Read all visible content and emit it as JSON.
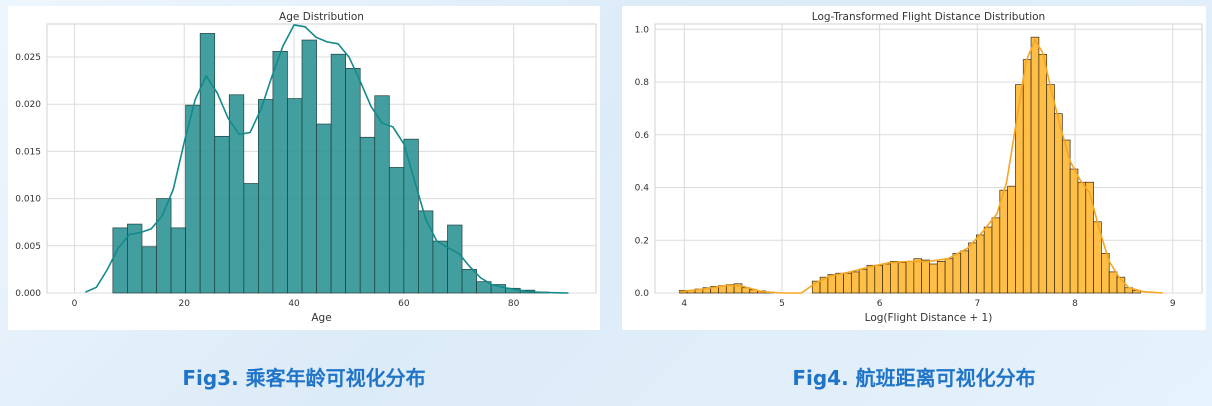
{
  "captions": {
    "left": "Fig3. 乘客年龄可视化分布",
    "right": "Fig4. 航班距离可视化分布"
  },
  "chart_data": [
    {
      "type": "bar",
      "title": "Age Distribution",
      "xlabel": "Age",
      "ylabel": "",
      "xlim": [
        -5,
        95
      ],
      "ylim": [
        0,
        0.0285
      ],
      "xticks": [
        0,
        20,
        40,
        60,
        80
      ],
      "yticks": [
        0.0,
        0.005,
        0.01,
        0.015,
        0.02,
        0.025
      ],
      "ytick_labels": [
        "0.000",
        "0.005",
        "0.010",
        "0.015",
        "0.020",
        "0.025"
      ],
      "grid": true,
      "bin_edges": [
        7,
        9.65,
        12.3,
        14.95,
        17.6,
        20.25,
        22.9,
        25.55,
        28.2,
        30.85,
        33.5,
        36.15,
        38.8,
        41.45,
        44.1,
        46.75,
        49.4,
        52.05,
        54.7,
        57.35,
        60,
        62.65,
        65.3,
        67.95,
        70.6,
        73.25,
        75.9,
        78.55,
        81.2,
        83.85,
        86.5
      ],
      "values": [
        0.0069,
        0.0073,
        0.0049,
        0.01,
        0.0069,
        0.0199,
        0.0275,
        0.0166,
        0.021,
        0.0116,
        0.0205,
        0.0256,
        0.0206,
        0.0268,
        0.0179,
        0.0253,
        0.0238,
        0.0165,
        0.0209,
        0.0133,
        0.0163,
        0.0087,
        0.0055,
        0.0072,
        0.0025,
        0.0012,
        0.0009,
        0.0005,
        0.0003,
        0.0001
      ],
      "kde": {
        "x": [
          2,
          4,
          6,
          8,
          10,
          12,
          14,
          16,
          18,
          20,
          22,
          24,
          26,
          28,
          30,
          32,
          34,
          36,
          38,
          40,
          42,
          44,
          46,
          48,
          50,
          52,
          54,
          56,
          58,
          60,
          62,
          64,
          66,
          68,
          70,
          72,
          74,
          76,
          78,
          80,
          82,
          84,
          86,
          88,
          90
        ],
        "y": [
          0.0001,
          0.0006,
          0.0025,
          0.0048,
          0.0062,
          0.0064,
          0.0068,
          0.0082,
          0.011,
          0.016,
          0.0205,
          0.023,
          0.0212,
          0.0185,
          0.0168,
          0.017,
          0.0195,
          0.023,
          0.0262,
          0.0284,
          0.0282,
          0.0271,
          0.0266,
          0.0264,
          0.025,
          0.0225,
          0.0198,
          0.018,
          0.0176,
          0.0158,
          0.0118,
          0.0078,
          0.0055,
          0.0048,
          0.0042,
          0.0028,
          0.0016,
          0.0009,
          0.0006,
          0.0004,
          0.0002,
          0.0001,
          5e-05,
          2e-05,
          0.0
        ],
        "color": "#148a8a"
      },
      "bar_color": "#2f9595",
      "edge_color": "#1f3f3f"
    },
    {
      "type": "bar",
      "title": "Log-Transformed Flight Distance Distribution",
      "xlabel": "Log(Flight Distance + 1)",
      "ylabel": "",
      "xlim": [
        3.7,
        9.3
      ],
      "ylim": [
        0,
        1.02
      ],
      "xticks": [
        4,
        5,
        6,
        7,
        8,
        9
      ],
      "yticks": [
        0.0,
        0.2,
        0.4,
        0.6,
        0.8,
        1.0
      ],
      "ytick_labels": [
        "0.0",
        "0.2",
        "0.4",
        "0.6",
        "0.8",
        "1.0"
      ],
      "grid": true,
      "bin_edges": [
        3.95,
        4.03,
        4.11,
        4.19,
        4.27,
        4.35,
        4.43,
        4.51,
        4.59,
        4.67,
        4.75,
        4.83,
        4.91,
        4.99,
        5.07,
        5.15,
        5.23,
        5.31,
        5.39,
        5.47,
        5.55,
        5.63,
        5.71,
        5.79,
        5.87,
        5.95,
        6.03,
        6.11,
        6.19,
        6.27,
        6.35,
        6.43,
        6.51,
        6.59,
        6.67,
        6.75,
        6.83,
        6.91,
        6.99,
        7.07,
        7.15,
        7.23,
        7.31,
        7.39,
        7.47,
        7.55,
        7.63,
        7.71,
        7.79,
        7.87,
        7.95,
        8.03,
        8.11,
        8.19,
        8.27,
        8.35,
        8.43,
        8.51,
        8.59,
        8.67
      ],
      "values": [
        0.01,
        0.01,
        0.015,
        0.02,
        0.025,
        0.028,
        0.032,
        0.035,
        0.02,
        0.012,
        0.008,
        0.004,
        0.0,
        0.0,
        0.0,
        0.0,
        0.0,
        0.045,
        0.06,
        0.07,
        0.075,
        0.075,
        0.08,
        0.09,
        0.105,
        0.105,
        0.11,
        0.12,
        0.115,
        0.12,
        0.13,
        0.125,
        0.11,
        0.12,
        0.13,
        0.15,
        0.16,
        0.19,
        0.22,
        0.25,
        0.285,
        0.39,
        0.405,
        0.79,
        0.885,
        0.97,
        0.905,
        0.79,
        0.68,
        0.58,
        0.47,
        0.42,
        0.42,
        0.27,
        0.15,
        0.08,
        0.06,
        0.02,
        0.01
      ],
      "line": {
        "x": [
          3.95,
          4.2,
          4.45,
          4.6,
          4.8,
          5.0,
          5.2,
          5.35,
          5.5,
          5.7,
          5.9,
          6.1,
          6.3,
          6.5,
          6.7,
          6.9,
          7.05,
          7.2,
          7.3,
          7.4,
          7.5,
          7.59,
          7.67,
          7.75,
          7.85,
          7.95,
          8.05,
          8.15,
          8.25,
          8.35,
          8.45,
          8.55,
          8.7,
          8.9
        ],
        "y": [
          0.005,
          0.015,
          0.03,
          0.025,
          0.005,
          0.0,
          0.0,
          0.04,
          0.065,
          0.08,
          0.1,
          0.115,
          0.12,
          0.12,
          0.13,
          0.17,
          0.23,
          0.3,
          0.42,
          0.65,
          0.88,
          0.96,
          0.91,
          0.78,
          0.63,
          0.5,
          0.43,
          0.38,
          0.24,
          0.12,
          0.06,
          0.02,
          0.005,
          0.0
        ],
        "color": "#f5a623"
      },
      "bar_color": "#ffb833",
      "edge_color": "#3a2a10"
    }
  ]
}
